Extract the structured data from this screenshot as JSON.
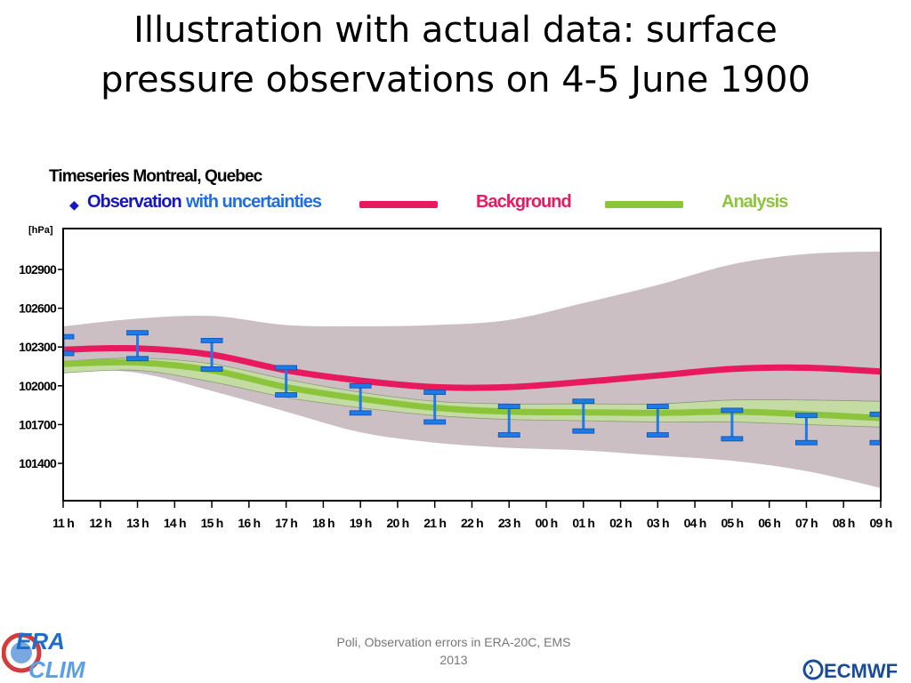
{
  "slide": {
    "title_line1": "Illustration with actual data: surface",
    "title_line2": "pressure observations on 4-5 June 1900",
    "footer_line1": "Poli, Observation errors in ERA-20C, EMS",
    "footer_line2": "2013",
    "logo_left_text": [
      "ERA",
      "CLIM"
    ],
    "logo_right_text": "ECMWF"
  },
  "colors": {
    "observation": "#1e7ae6",
    "observation_text": "#1414c8",
    "uncertainty_text": "#1e6ee6",
    "background": "#e8195e",
    "analysis": "#8cc43c",
    "spread": "#cbbfc3",
    "analysis_band": "#c4dca4"
  },
  "chart_data": {
    "type": "line",
    "title": "Timeseries Montreal, Quebec",
    "ylabel": "[hPa]",
    "legend": {
      "observation": "Observation",
      "uncertainty": "with uncertainties",
      "background": "Background",
      "analysis": "Analysis",
      "placement": "top"
    },
    "x_ticks": [
      "11 h",
      "12 h",
      "13 h",
      "14 h",
      "15 h",
      "16 h",
      "17 h",
      "18 h",
      "19 h",
      "20 h",
      "21 h",
      "22 h",
      "23 h",
      "00 h",
      "01 h",
      "02 h",
      "03 h",
      "04 h",
      "05 h",
      "06 h",
      "07 h",
      "08 h",
      "09 h"
    ],
    "y_ticks": [
      102900,
      102600,
      102300,
      102000,
      101700,
      101400
    ],
    "ylim": [
      101120,
      103150
    ],
    "grid": false,
    "series": [
      {
        "name": "Background",
        "x": [
          "11 h",
          "13 h",
          "15 h",
          "17 h",
          "19 h",
          "21 h",
          "23 h",
          "01 h",
          "03 h",
          "05 h",
          "07 h",
          "09 h"
        ],
        "values": [
          102280,
          102290,
          102240,
          102120,
          102040,
          101990,
          101990,
          102030,
          102080,
          102130,
          102140,
          102110
        ]
      },
      {
        "name": "Analysis",
        "x": [
          "11 h",
          "13 h",
          "15 h",
          "17 h",
          "19 h",
          "21 h",
          "23 h",
          "01 h",
          "03 h",
          "05 h",
          "07 h",
          "09 h"
        ],
        "values": [
          102170,
          102180,
          102120,
          101990,
          101900,
          101830,
          101800,
          101795,
          101790,
          101800,
          101780,
          101750
        ]
      },
      {
        "name": "Background spread",
        "x": [
          "11 h",
          "13 h",
          "15 h",
          "17 h",
          "19 h",
          "21 h",
          "23 h",
          "01 h",
          "03 h",
          "05 h",
          "07 h",
          "09 h"
        ],
        "upper": [
          102460,
          102520,
          102540,
          102470,
          102460,
          102470,
          102510,
          102640,
          102780,
          102940,
          103020,
          103040
        ],
        "lower": [
          102130,
          102100,
          101960,
          101800,
          101640,
          101560,
          101520,
          101500,
          101460,
          101420,
          101340,
          101210
        ]
      },
      {
        "name": "Analysis uncertainty",
        "x": [
          "11 h",
          "13 h",
          "15 h",
          "17 h",
          "19 h",
          "21 h",
          "23 h",
          "01 h",
          "03 h",
          "05 h",
          "07 h",
          "09 h"
        ],
        "upper": [
          102190,
          102215,
          102170,
          102050,
          101950,
          101880,
          101860,
          101860,
          101860,
          101890,
          101890,
          101880
        ],
        "lower": [
          102100,
          102120,
          102030,
          101910,
          101830,
          101770,
          101740,
          101730,
          101720,
          101720,
          101700,
          101680
        ]
      },
      {
        "name": "Observation",
        "x": [
          "11 h",
          "13 h",
          "15 h",
          "17 h",
          "19 h",
          "21 h",
          "23 h",
          "01 h",
          "03 h",
          "05 h",
          "07 h",
          "09 h"
        ],
        "upper": [
          102380,
          102410,
          102350,
          102140,
          102000,
          101950,
          101840,
          101880,
          101840,
          101810,
          101770,
          101780
        ],
        "lower": [
          102250,
          102210,
          102130,
          101930,
          101790,
          101720,
          101620,
          101650,
          101620,
          101590,
          101560,
          101560
        ]
      }
    ]
  }
}
